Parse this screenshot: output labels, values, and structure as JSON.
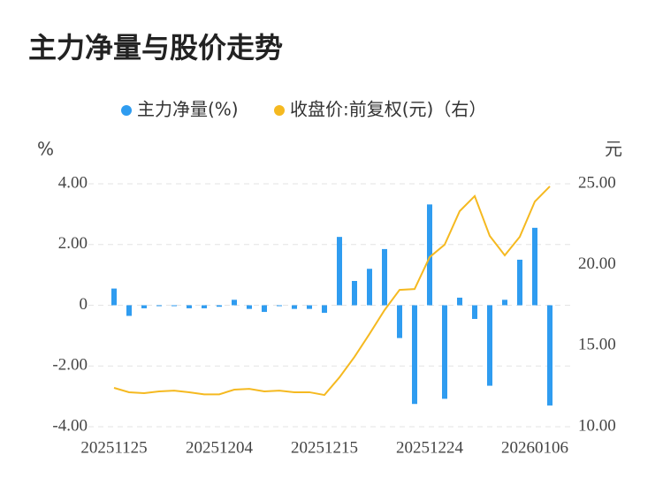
{
  "chart_data": {
    "type": "bar",
    "title": "主力净量与股价走势",
    "categories": [
      "20251125",
      null,
      null,
      null,
      null,
      null,
      null,
      "20251204",
      null,
      null,
      null,
      null,
      null,
      null,
      "20251215",
      null,
      null,
      null,
      null,
      null,
      null,
      "20251224",
      null,
      null,
      null,
      null,
      null,
      null,
      "20260106",
      null
    ],
    "series": [
      {
        "name": "主力净量(%)",
        "type": "bar",
        "color": "#2f9cf0",
        "values": [
          0.55,
          -0.35,
          -0.1,
          -0.03,
          -0.03,
          -0.1,
          -0.1,
          -0.05,
          0.18,
          -0.12,
          -0.22,
          -0.03,
          -0.12,
          -0.12,
          -0.25,
          2.25,
          0.8,
          1.2,
          1.85,
          -1.08,
          -3.25,
          3.32,
          -3.08,
          0.25,
          -0.45,
          -2.65,
          0.18,
          1.5,
          2.55,
          -3.3
        ]
      },
      {
        "name": "收盘价:前复权(元)（右）",
        "type": "line",
        "axis": "y2",
        "color": "#f5b920",
        "values": [
          12.4,
          12.13,
          12.07,
          12.18,
          12.23,
          12.13,
          12.0,
          12.0,
          12.29,
          12.34,
          12.18,
          12.23,
          12.13,
          12.13,
          11.96,
          13.05,
          14.31,
          15.73,
          17.2,
          18.45,
          18.5,
          20.47,
          21.24,
          23.31,
          24.24,
          21.78,
          20.58,
          21.73,
          23.9,
          24.84
        ]
      }
    ],
    "ylabel": "%",
    "y2label": "元",
    "ylim": [
      -4,
      4
    ],
    "yticks": [
      {
        "value": 4,
        "label": "4.00"
      },
      {
        "value": 2,
        "label": "2.00"
      },
      0,
      {
        "value": -2,
        "label": "-2.00"
      },
      {
        "value": -4,
        "label": "-4.00"
      }
    ],
    "y2lim": [
      10,
      25
    ],
    "y2ticks": [
      {
        "value": 25,
        "label": "25.00"
      },
      {
        "value": 20,
        "label": "20.00"
      },
      {
        "value": 15,
        "label": "15.00"
      },
      {
        "value": 10,
        "label": "10.00"
      }
    ],
    "grid": true
  }
}
